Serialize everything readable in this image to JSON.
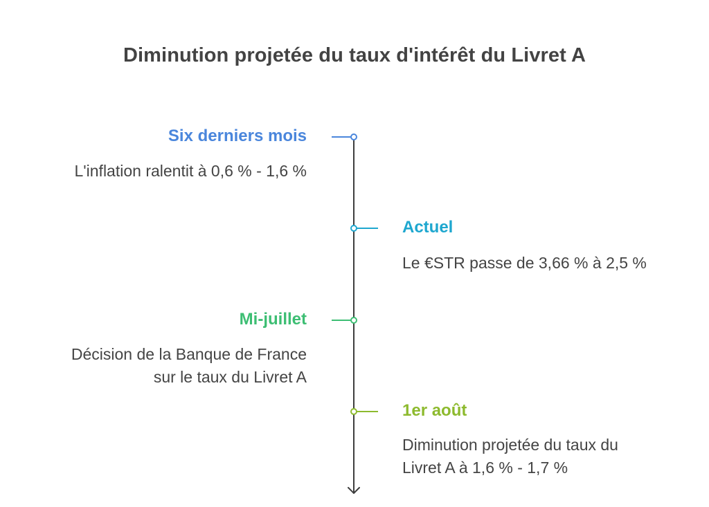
{
  "title": "Diminution projetée du taux d'intérêt du Livret A",
  "events": [
    {
      "title": "Six derniers mois",
      "description_lines": [
        "L'inflation ralentit à 0,6 % - 1,6 %"
      ],
      "side": "left",
      "color": "#4A86DC"
    },
    {
      "title": "Actuel",
      "description_lines": [
        "Le €STR passe de 3,66 % à 2,5 %"
      ],
      "side": "right",
      "color": "#1EA7CF"
    },
    {
      "title": "Mi-juillet",
      "description_lines": [
        "Décision de la Banque de France",
        "sur le taux du Livret A"
      ],
      "side": "left",
      "color": "#3DBE73"
    },
    {
      "title": "1er août",
      "description_lines": [
        "Diminution projetée du taux du",
        "Livret A à 1,6 % - 1,7 %"
      ],
      "side": "right",
      "color": "#8DBA2E"
    }
  ],
  "axis_color": "#3d3d3d"
}
